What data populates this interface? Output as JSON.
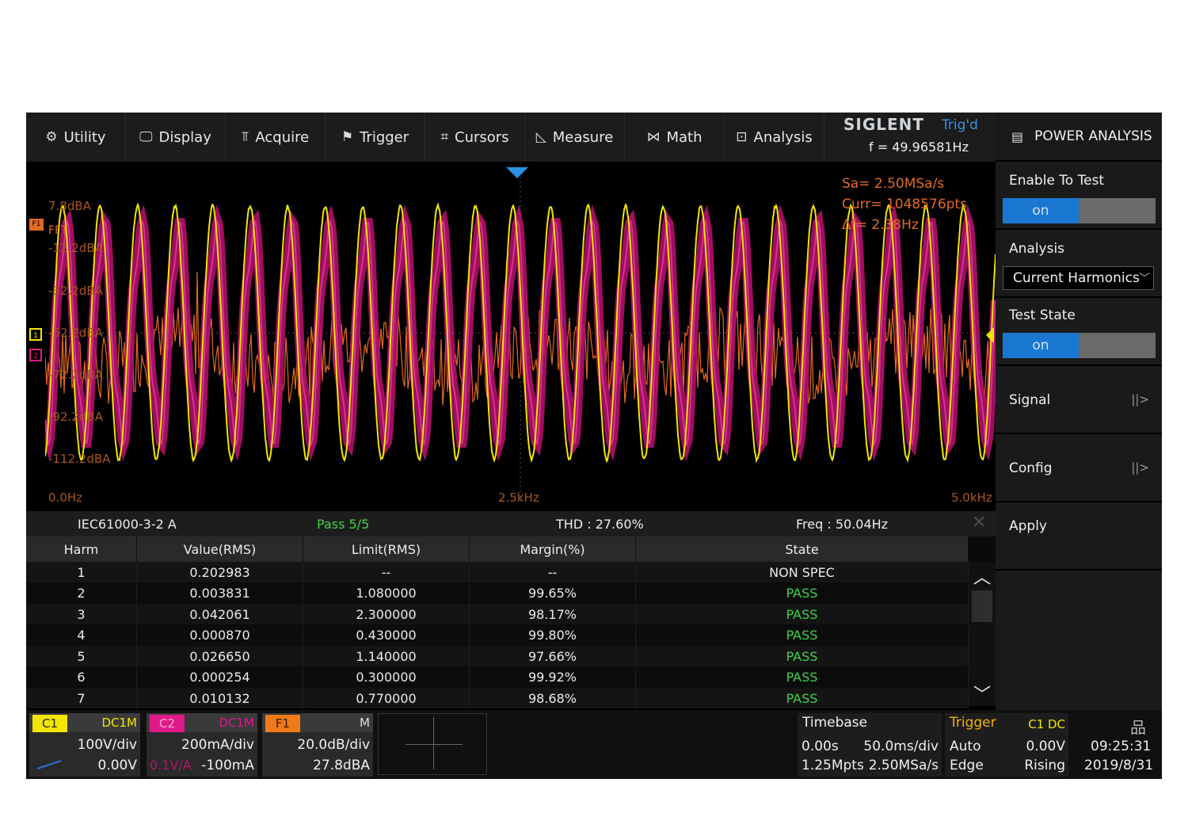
{
  "menu": [
    {
      "label": "Utility",
      "icon": "gear-icon",
      "glyph": "⚙"
    },
    {
      "label": "Display",
      "icon": "monitor-icon",
      "glyph": "🖵"
    },
    {
      "label": "Acquire",
      "icon": "acquire-icon",
      "glyph": "⫪"
    },
    {
      "label": "Trigger",
      "icon": "flag-icon",
      "glyph": "⚑"
    },
    {
      "label": "Cursors",
      "icon": "cursors-icon",
      "glyph": "⌗"
    },
    {
      "label": "Measure",
      "icon": "ruler-icon",
      "glyph": "◺"
    },
    {
      "label": "Math",
      "icon": "math-icon",
      "glyph": "⋈"
    },
    {
      "label": "Analysis",
      "icon": "analysis-icon",
      "glyph": "⊡"
    }
  ],
  "brand": {
    "logo": "SIGLENT",
    "trig_status": "Trig'd",
    "frequency": "f = 49.96581Hz"
  },
  "panel": {
    "title": "POWER ANALYSIS",
    "enable_label": "Enable To Test",
    "enable_value": "on",
    "analysis_label": "Analysis",
    "analysis_value": "Current Harmonics",
    "test_state_label": "Test State",
    "test_state_value": "on",
    "signal_label": "Signal",
    "config_label": "Config",
    "apply_label": "Apply"
  },
  "acq_info": {
    "sa": "Sa= 2.50MSa/s",
    "curr": "Curr= 1048576pts",
    "df": "Δf= 2.38Hz"
  },
  "fft_labels": {
    "top": "7.8dBA",
    "fft": "FFT",
    "l2": "-12.2dBA",
    "l3": "-32.2dBA",
    "l4": "-52.2dBA",
    "l5": "-72.2dBA",
    "l6": "-92.2dBA",
    "bottom": "-112.2dBA"
  },
  "freq_axis": {
    "left": "0.0Hz",
    "mid": "2.5kHz",
    "right": "5.0kHz"
  },
  "summary": {
    "standard": "IEC61000-3-2 A",
    "pass": "Pass 5/5",
    "thd": "THD : 27.60%",
    "freq": "Freq : 50.04Hz"
  },
  "table": {
    "headers": [
      "Harm",
      "Value(RMS)",
      "Limit(RMS)",
      "Margin(%)",
      "State"
    ],
    "rows": [
      {
        "harm": "1",
        "value": "0.202983",
        "limit": "--",
        "margin": "--",
        "state": "NON SPEC"
      },
      {
        "harm": "2",
        "value": "0.003831",
        "limit": "1.080000",
        "margin": "99.65%",
        "state": "PASS"
      },
      {
        "harm": "3",
        "value": "0.042061",
        "limit": "2.300000",
        "margin": "98.17%",
        "state": "PASS"
      },
      {
        "harm": "4",
        "value": "0.000870",
        "limit": "0.430000",
        "margin": "99.80%",
        "state": "PASS"
      },
      {
        "harm": "5",
        "value": "0.026650",
        "limit": "1.140000",
        "margin": "97.66%",
        "state": "PASS"
      },
      {
        "harm": "6",
        "value": "0.000254",
        "limit": "0.300000",
        "margin": "99.92%",
        "state": "PASS"
      },
      {
        "harm": "7",
        "value": "0.010132",
        "limit": "0.770000",
        "margin": "98.68%",
        "state": "PASS"
      }
    ]
  },
  "channels": {
    "c1": {
      "tag": "C1",
      "coupling": "DC1M",
      "scale": "100V/div",
      "offset": "0.00V",
      "color": "#f2e600"
    },
    "c2": {
      "tag": "C2",
      "coupling": "DC1M",
      "probe": "0.1V/A",
      "scale": "200mA/div",
      "offset": "-100mA",
      "color": "#e0198a"
    },
    "f1": {
      "tag": "F1",
      "mode": "M",
      "scale": "20.0dB/div",
      "offset": "27.8dBA",
      "color": "#f07a1a"
    }
  },
  "timebase": {
    "label": "Timebase",
    "delay": "0.00s",
    "scale": "50.0ms/div",
    "points": "1.25Mpts",
    "rate": "2.50MSa/s"
  },
  "trigger": {
    "label": "Trigger",
    "source": "C1 DC",
    "mode": "Auto",
    "level": "0.00V",
    "type": "Edge",
    "slope": "Rising"
  },
  "clock": {
    "time": "09:25:31",
    "date": "2019/8/31"
  }
}
